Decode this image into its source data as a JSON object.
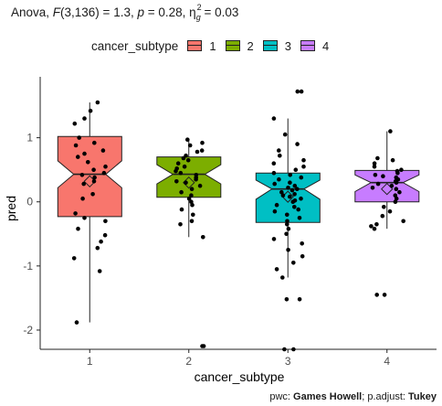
{
  "title": {
    "prefix": "Anova, ",
    "stat_name": "F",
    "stat_args": "(3,136) = 1.3, ",
    "p_name": "p",
    "p_value": " = 0.28, ",
    "eta_name": "η",
    "eta_sup": "2",
    "eta_sub": "g",
    "eta_value": " = 0.03"
  },
  "footer": {
    "pwc_label": "pwc: ",
    "pwc_method": "Games Howell",
    "padjust_label": "; p.adjust: ",
    "padjust_method": "Tukey"
  },
  "chart_data": {
    "type": "boxplot",
    "xlabel": "cancer_subtype",
    "ylabel": "pred",
    "categories": [
      "1",
      "2",
      "3",
      "4"
    ],
    "ylim": [
      -2.3,
      1.95
    ],
    "yticks": [
      -2,
      -1,
      0,
      1
    ],
    "legend": {
      "title": "cancer_subtype",
      "position": "top"
    },
    "grid": false,
    "notched": true,
    "mean_marker": "diamond",
    "series": [
      {
        "name": "1",
        "color": "#F8766D",
        "box": {
          "q1": -0.23,
          "median": 0.43,
          "q3": 1.02,
          "notch_low": 0.22,
          "notch_high": 0.64,
          "whisker_low": -1.88,
          "whisker_high": 1.55,
          "mean": 0.32
        },
        "points": [
          1.55,
          1.42,
          1.3,
          1.22,
          1.0,
          0.92,
          0.88,
          0.8,
          0.75,
          0.7,
          0.62,
          0.55,
          0.5,
          0.45,
          0.42,
          0.38,
          0.32,
          0.28,
          0.12,
          0.05,
          -0.18,
          -0.25,
          -0.3,
          -0.42,
          -0.52,
          -0.62,
          -0.72,
          -0.88,
          -1.08,
          -1.88
        ]
      },
      {
        "name": "2",
        "color": "#7CAE00",
        "box": {
          "q1": 0.07,
          "median": 0.43,
          "q3": 0.7,
          "notch_low": 0.28,
          "notch_high": 0.58,
          "whisker_low": -0.55,
          "whisker_high": 0.97,
          "mean": 0.3
        },
        "points": [
          0.97,
          0.92,
          0.88,
          0.8,
          0.78,
          0.72,
          0.68,
          0.65,
          0.6,
          0.55,
          0.52,
          0.48,
          0.45,
          0.42,
          0.38,
          0.35,
          0.32,
          0.3,
          0.25,
          0.2,
          0.15,
          0.1,
          0.05,
          0.0,
          -0.05,
          -0.12,
          -0.2,
          -0.3,
          -0.35,
          -0.55,
          -2.25,
          -2.25
        ]
      },
      {
        "name": "3",
        "color": "#00BFC4",
        "box": {
          "q1": -0.32,
          "median": 0.2,
          "q3": 0.45,
          "notch_low": 0.04,
          "notch_high": 0.34,
          "whisker_low": -1.18,
          "whisker_high": 1.3,
          "mean": 0.08
        },
        "points": [
          1.72,
          1.72,
          1.3,
          1.05,
          0.9,
          0.8,
          0.72,
          0.65,
          0.6,
          0.55,
          0.5,
          0.45,
          0.42,
          0.38,
          0.35,
          0.3,
          0.28,
          0.25,
          0.22,
          0.2,
          0.18,
          0.15,
          0.12,
          0.1,
          0.08,
          0.05,
          0.02,
          0.0,
          -0.05,
          -0.08,
          -0.12,
          -0.15,
          -0.2,
          -0.25,
          -0.3,
          -0.35,
          -0.42,
          -0.5,
          -0.58,
          -0.65,
          -0.75,
          -0.85,
          -0.95,
          -1.05,
          -1.18,
          -1.52,
          -1.52,
          -2.3,
          -2.3
        ]
      },
      {
        "name": "4",
        "color": "#C77CFF",
        "box": {
          "q1": 0.0,
          "median": 0.3,
          "q3": 0.49,
          "notch_low": 0.16,
          "notch_high": 0.42,
          "whisker_low": -0.42,
          "whisker_high": 1.1,
          "mean": 0.2
        },
        "points": [
          1.1,
          0.68,
          0.65,
          0.6,
          0.55,
          0.5,
          0.48,
          0.45,
          0.42,
          0.4,
          0.38,
          0.35,
          0.32,
          0.3,
          0.28,
          0.25,
          0.22,
          0.2,
          0.15,
          0.1,
          0.05,
          0.0,
          -0.08,
          -0.15,
          -0.22,
          -0.3,
          -0.35,
          -0.38,
          -0.42,
          -1.45,
          -1.45
        ]
      }
    ]
  }
}
